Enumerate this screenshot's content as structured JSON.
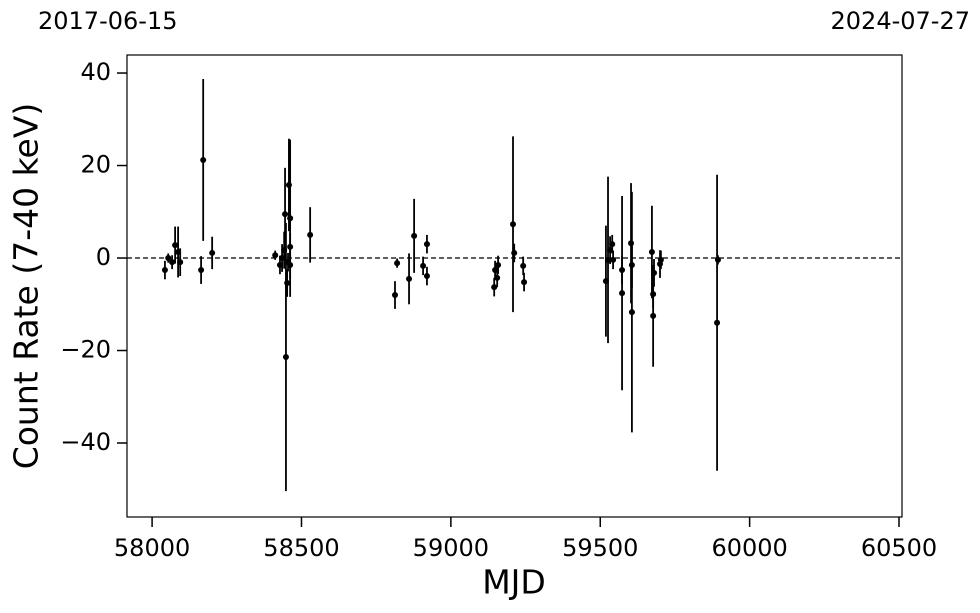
{
  "chart_data": {
    "type": "scatter",
    "xlabel": "MJD",
    "ylabel": "Count Rate (7-40 keV)",
    "annotations": [
      "2017-06-15",
      "2024-07-27"
    ],
    "xlim": [
      57916,
      60510
    ],
    "ylim": [
      -56,
      43.9
    ],
    "xticks": [
      58000,
      58500,
      59000,
      59500,
      60000,
      60500
    ],
    "yticks": [
      {
        "value": -40,
        "label": "−40"
      },
      {
        "value": -20,
        "label": "−20"
      },
      0,
      20,
      40
    ],
    "hline": 0,
    "grid": false,
    "color": "#000000",
    "series": [
      {
        "x": [
          58043,
          58054,
          58067,
          58077,
          58087,
          58094,
          58164,
          58171,
          58201,
          58412,
          58428,
          58435,
          58442,
          58445,
          58448,
          58452,
          58455,
          58458,
          58462,
          58462,
          58462,
          58529,
          58813,
          58820,
          58860,
          58877,
          58907,
          58920,
          58920,
          59145,
          59148,
          59155,
          59158,
          59208,
          59212,
          59242,
          59245,
          59519,
          59526,
          59533,
          59540,
          59543,
          59573,
          59573,
          59603,
          59606,
          59606,
          59673,
          59677,
          59677,
          59680,
          59700,
          59703,
          59891,
          59894
        ],
        "y": [
          -2.6,
          0,
          -0.9,
          2.8,
          1.3,
          -0.9,
          -2.6,
          21.2,
          1.1,
          0.6,
          -1.5,
          0,
          1.7,
          9.5,
          -21.4,
          -5.4,
          -0.9,
          15.8,
          8.6,
          -1.5,
          2.4,
          5.0,
          -8,
          -1.1,
          -4.5,
          4.8,
          -1.7,
          3,
          -3.9,
          -6.3,
          -2.6,
          -4.3,
          -1.5,
          7.3,
          1.1,
          -1.7,
          -5.2,
          -5,
          -0.4,
          1.7,
          3,
          -0.4,
          -7.6,
          -2.6,
          3.2,
          -11.7,
          -1.5,
          1.3,
          -12.5,
          -7.8,
          -3.2,
          -1.3,
          -0.4,
          -14,
          -0.4
        ],
        "yerr": [
          2,
          1,
          1.5,
          4,
          5.5,
          3,
          3,
          17.5,
          3.5,
          1,
          2,
          3,
          4,
          10,
          29,
          3,
          2,
          10,
          17,
          3,
          3,
          6,
          3,
          1,
          5.5,
          8,
          2,
          2,
          2,
          2,
          2,
          2,
          2,
          19,
          2,
          2,
          2,
          12,
          18,
          3,
          2,
          2,
          21,
          3,
          13,
          26,
          5,
          10,
          11,
          3,
          3,
          3,
          2,
          32,
          1
        ]
      }
    ]
  }
}
